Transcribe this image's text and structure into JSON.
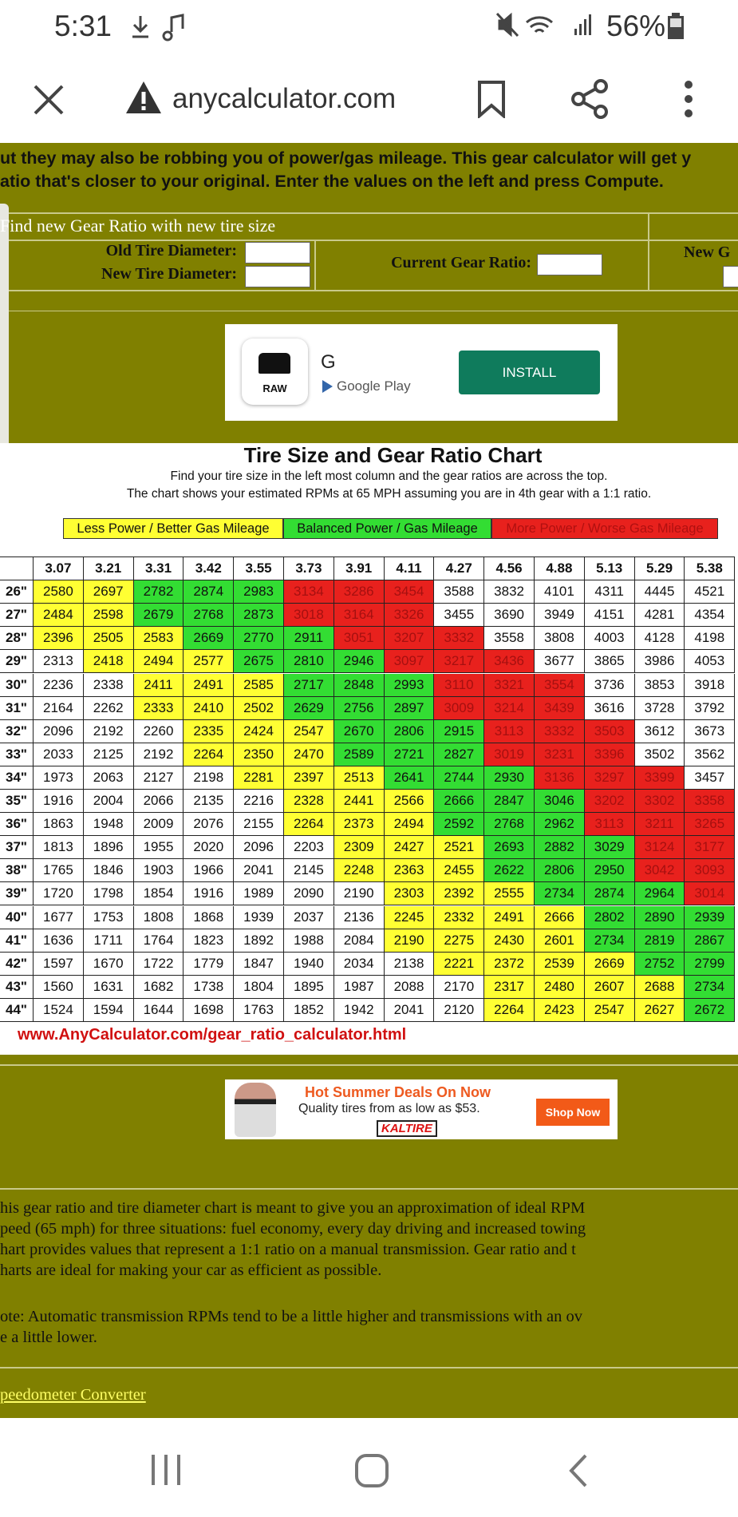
{
  "status_bar": {
    "time": "5:31",
    "battery": "56%"
  },
  "browser": {
    "url": "anycalculator.com"
  },
  "intro": [
    "ut they may also be robbing you of power/gas mileage. This gear calculator will get y",
    "atio that's closer to your original. Enter the values on the left and press Compute."
  ],
  "form": {
    "title": "Find new Gear Ratio with new tire size",
    "old_tire": "Old Tire Diameter:",
    "new_tire": "New Tire Diameter:",
    "current_ratio": "Current Gear Ratio:",
    "new_ratio": "New G"
  },
  "ad_top": {
    "brand": "RAW",
    "name": "G",
    "store": "Google Play",
    "button": "INSTALL"
  },
  "chart": {
    "title": "Tire Size and Gear Ratio Chart",
    "notes": [
      "Find your tire size in the left most column and the gear ratios are across the top.",
      "The chart shows your estimated RPMs at 65 MPH assuming you are in 4th gear with a 1:1 ratio."
    ],
    "legend": [
      {
        "label": "Less Power / Better Gas Mileage",
        "color": "#ffff33"
      },
      {
        "label": "Balanced Power / Gas Mileage",
        "color": "#33dd33"
      },
      {
        "label": "More Power / Worse Gas Mileage",
        "color": "#e8211d"
      }
    ],
    "header": [
      3.07,
      3.21,
      3.31,
      3.42,
      3.55,
      3.73,
      3.91,
      4.11,
      4.27,
      4.56,
      4.88,
      5.13,
      5.29,
      5.38
    ],
    "rows": [
      {
        "size": "26\"",
        "values": [
          2580,
          2697,
          2782,
          2874,
          2983,
          3134,
          3286,
          3454,
          3588,
          3832,
          4101,
          4311,
          4445,
          4521
        ],
        "colors": [
          "#ffff33",
          "#ffff33",
          "#33dd33",
          "#33dd33",
          "#33dd33",
          "#e8211d",
          "#e8211d",
          "#e8211d",
          "#ffffff",
          "#ffffff",
          "#ffffff",
          "#ffffff",
          "#ffffff",
          "#ffffff"
        ]
      },
      {
        "size": "27\"",
        "values": [
          2484,
          2598,
          2679,
          2768,
          2873,
          3018,
          3164,
          3326,
          3455,
          3690,
          3949,
          4151,
          4281,
          4354
        ],
        "colors": [
          "#ffff33",
          "#ffff33",
          "#33dd33",
          "#33dd33",
          "#33dd33",
          "#e8211d",
          "#e8211d",
          "#e8211d",
          "#ffffff",
          "#ffffff",
          "#ffffff",
          "#ffffff",
          "#ffffff",
          "#ffffff"
        ]
      },
      {
        "size": "28\"",
        "values": [
          2396,
          2505,
          2583,
          2669,
          2770,
          2911,
          3051,
          3207,
          3332,
          3558,
          3808,
          4003,
          4128,
          4198
        ],
        "colors": [
          "#ffff33",
          "#ffff33",
          "#ffff33",
          "#33dd33",
          "#33dd33",
          "#33dd33",
          "#e8211d",
          "#e8211d",
          "#e8211d",
          "#ffffff",
          "#ffffff",
          "#ffffff",
          "#ffffff",
          "#ffffff"
        ]
      },
      {
        "size": "29\"",
        "values": [
          2313,
          2418,
          2494,
          2577,
          2675,
          2810,
          2946,
          3097,
          3217,
          3436,
          3677,
          3865,
          3986,
          4053
        ],
        "colors": [
          "#ffffff",
          "#ffff33",
          "#ffff33",
          "#ffff33",
          "#33dd33",
          "#33dd33",
          "#33dd33",
          "#e8211d",
          "#e8211d",
          "#e8211d",
          "#ffffff",
          "#ffffff",
          "#ffffff",
          "#ffffff"
        ]
      },
      {
        "size": "30\"",
        "values": [
          2236,
          2338,
          2411,
          2491,
          2585,
          2717,
          2848,
          2993,
          3110,
          3321,
          3554,
          3736,
          3853,
          3918
        ],
        "colors": [
          "#ffffff",
          "#ffffff",
          "#ffff33",
          "#ffff33",
          "#ffff33",
          "#33dd33",
          "#33dd33",
          "#33dd33",
          "#e8211d",
          "#e8211d",
          "#e8211d",
          "#ffffff",
          "#ffffff",
          "#ffffff"
        ]
      },
      {
        "size": "31\"",
        "values": [
          2164,
          2262,
          2333,
          2410,
          2502,
          2629,
          2756,
          2897,
          3009,
          3214,
          3439,
          3616,
          3728,
          3792
        ],
        "colors": [
          "#ffffff",
          "#ffffff",
          "#ffff33",
          "#ffff33",
          "#ffff33",
          "#33dd33",
          "#33dd33",
          "#33dd33",
          "#e8211d",
          "#e8211d",
          "#e8211d",
          "#ffffff",
          "#ffffff",
          "#ffffff"
        ]
      },
      {
        "size": "32\"",
        "values": [
          2096,
          2192,
          2260,
          2335,
          2424,
          2547,
          2670,
          2806,
          2915,
          3113,
          3332,
          3503,
          3612,
          3673
        ],
        "colors": [
          "#ffffff",
          "#ffffff",
          "#ffffff",
          "#ffff33",
          "#ffff33",
          "#ffff33",
          "#33dd33",
          "#33dd33",
          "#33dd33",
          "#e8211d",
          "#e8211d",
          "#e8211d",
          "#ffffff",
          "#ffffff"
        ]
      },
      {
        "size": "33\"",
        "values": [
          2033,
          2125,
          2192,
          2264,
          2350,
          2470,
          2589,
          2721,
          2827,
          3019,
          3231,
          3396,
          3502,
          3562
        ],
        "colors": [
          "#ffffff",
          "#ffffff",
          "#ffffff",
          "#ffff33",
          "#ffff33",
          "#ffff33",
          "#33dd33",
          "#33dd33",
          "#33dd33",
          "#e8211d",
          "#e8211d",
          "#e8211d",
          "#ffffff",
          "#ffffff"
        ]
      },
      {
        "size": "34\"",
        "values": [
          1973,
          2063,
          2127,
          2198,
          2281,
          2397,
          2513,
          2641,
          2744,
          2930,
          3136,
          3297,
          3399,
          3457
        ],
        "colors": [
          "#ffffff",
          "#ffffff",
          "#ffffff",
          "#ffffff",
          "#ffff33",
          "#ffff33",
          "#ffff33",
          "#33dd33",
          "#33dd33",
          "#33dd33",
          "#e8211d",
          "#e8211d",
          "#e8211d",
          "#ffffff"
        ]
      },
      {
        "size": "35\"",
        "values": [
          1916,
          2004,
          2066,
          2135,
          2216,
          2328,
          2441,
          2566,
          2666,
          2847,
          3046,
          3202,
          3302,
          3358
        ],
        "colors": [
          "#ffffff",
          "#ffffff",
          "#ffffff",
          "#ffffff",
          "#ffffff",
          "#ffff33",
          "#ffff33",
          "#ffff33",
          "#33dd33",
          "#33dd33",
          "#33dd33",
          "#e8211d",
          "#e8211d",
          "#e8211d"
        ]
      },
      {
        "size": "36\"",
        "values": [
          1863,
          1948,
          2009,
          2076,
          2155,
          2264,
          2373,
          2494,
          2592,
          2768,
          2962,
          3113,
          3211,
          3265
        ],
        "colors": [
          "#ffffff",
          "#ffffff",
          "#ffffff",
          "#ffffff",
          "#ffffff",
          "#ffff33",
          "#ffff33",
          "#ffff33",
          "#33dd33",
          "#33dd33",
          "#33dd33",
          "#e8211d",
          "#e8211d",
          "#e8211d"
        ]
      },
      {
        "size": "37\"",
        "values": [
          1813,
          1896,
          1955,
          2020,
          2096,
          2203,
          2309,
          2427,
          2521,
          2693,
          2882,
          3029,
          3124,
          3177
        ],
        "colors": [
          "#ffffff",
          "#ffffff",
          "#ffffff",
          "#ffffff",
          "#ffffff",
          "#ffffff",
          "#ffff33",
          "#ffff33",
          "#ffff33",
          "#33dd33",
          "#33dd33",
          "#33dd33",
          "#e8211d",
          "#e8211d"
        ]
      },
      {
        "size": "38\"",
        "values": [
          1765,
          1846,
          1903,
          1966,
          2041,
          2145,
          2248,
          2363,
          2455,
          2622,
          2806,
          2950,
          3042,
          3093
        ],
        "colors": [
          "#ffffff",
          "#ffffff",
          "#ffffff",
          "#ffffff",
          "#ffffff",
          "#ffffff",
          "#ffff33",
          "#ffff33",
          "#ffff33",
          "#33dd33",
          "#33dd33",
          "#33dd33",
          "#e8211d",
          "#e8211d"
        ]
      },
      {
        "size": "39\"",
        "values": [
          1720,
          1798,
          1854,
          1916,
          1989,
          2090,
          2190,
          2303,
          2392,
          2555,
          2734,
          2874,
          2964,
          3014
        ],
        "colors": [
          "#ffffff",
          "#ffffff",
          "#ffffff",
          "#ffffff",
          "#ffffff",
          "#ffffff",
          "#ffffff",
          "#ffff33",
          "#ffff33",
          "#ffff33",
          "#33dd33",
          "#33dd33",
          "#33dd33",
          "#e8211d"
        ]
      },
      {
        "size": "40\"",
        "values": [
          1677,
          1753,
          1808,
          1868,
          1939,
          2037,
          2136,
          2245,
          2332,
          2491,
          2666,
          2802,
          2890,
          2939
        ],
        "colors": [
          "#ffffff",
          "#ffffff",
          "#ffffff",
          "#ffffff",
          "#ffffff",
          "#ffffff",
          "#ffffff",
          "#ffff33",
          "#ffff33",
          "#ffff33",
          "#ffff33",
          "#33dd33",
          "#33dd33",
          "#33dd33"
        ]
      },
      {
        "size": "41\"",
        "values": [
          1636,
          1711,
          1764,
          1823,
          1892,
          1988,
          2084,
          2190,
          2275,
          2430,
          2601,
          2734,
          2819,
          2867
        ],
        "colors": [
          "#ffffff",
          "#ffffff",
          "#ffffff",
          "#ffffff",
          "#ffffff",
          "#ffffff",
          "#ffffff",
          "#ffff33",
          "#ffff33",
          "#ffff33",
          "#ffff33",
          "#33dd33",
          "#33dd33",
          "#33dd33"
        ]
      },
      {
        "size": "42\"",
        "values": [
          1597,
          1670,
          1722,
          1779,
          1847,
          1940,
          2034,
          2138,
          2221,
          2372,
          2539,
          2669,
          2752,
          2799
        ],
        "colors": [
          "#ffffff",
          "#ffffff",
          "#ffffff",
          "#ffffff",
          "#ffffff",
          "#ffffff",
          "#ffffff",
          "#ffffff",
          "#ffff33",
          "#ffff33",
          "#ffff33",
          "#ffff33",
          "#33dd33",
          "#33dd33"
        ]
      },
      {
        "size": "43\"",
        "values": [
          1560,
          1631,
          1682,
          1738,
          1804,
          1895,
          1987,
          2088,
          2170,
          2317,
          2480,
          2607,
          2688,
          2734
        ],
        "colors": [
          "#ffffff",
          "#ffffff",
          "#ffffff",
          "#ffffff",
          "#ffffff",
          "#ffffff",
          "#ffffff",
          "#ffffff",
          "#ffffff",
          "#ffff33",
          "#ffff33",
          "#ffff33",
          "#ffff33",
          "#33dd33"
        ]
      },
      {
        "size": "44\"",
        "values": [
          1524,
          1594,
          1644,
          1698,
          1763,
          1852,
          1942,
          2041,
          2120,
          2264,
          2423,
          2547,
          2627,
          2672
        ],
        "colors": [
          "#ffffff",
          "#ffffff",
          "#ffffff",
          "#ffffff",
          "#ffffff",
          "#ffffff",
          "#ffffff",
          "#ffffff",
          "#ffffff",
          "#ffff33",
          "#ffff33",
          "#ffff33",
          "#ffff33",
          "#33dd33"
        ]
      }
    ],
    "url": "www.AnyCalculator.com/gear_ratio_calculator.html"
  },
  "ad_bottom": {
    "headline": "Hot Summer Deals On Now",
    "text": "Quality tires from as low as $53.",
    "brand": "KALTIRE",
    "button": "Shop Now"
  },
  "description": [
    "his gear ratio and tire diameter chart is meant to give you an approximation of ideal RPM",
    "peed (65 mph) for three situations: fuel economy, every day driving and increased towing",
    "hart provides values that represent a 1:1 ratio on a manual transmission. Gear ratio and t",
    "harts are ideal for making your car as efficient as possible."
  ],
  "note": [
    "ote: Automatic transmission RPMs tend to be a little higher and transmissions with an ov",
    "e a little lower."
  ],
  "link": "peedometer Converter"
}
